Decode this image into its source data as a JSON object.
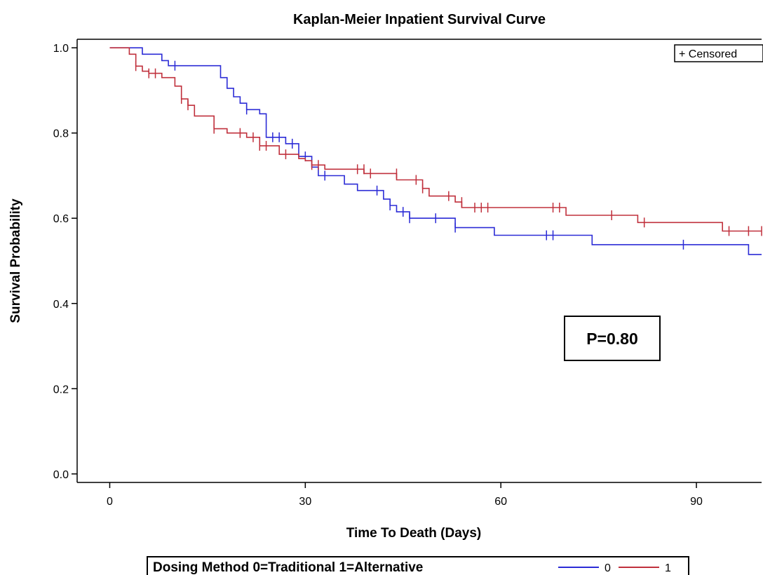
{
  "chart_data": {
    "type": "line",
    "subtype": "kaplan-meier-step",
    "title": "Kaplan-Meier Inpatient Survival Curve",
    "xlabel": "Time To Death (Days)",
    "ylabel": "Survival Probability",
    "xlim": [
      -5,
      100
    ],
    "ylim": [
      -0.02,
      1.02
    ],
    "x_ticks": [
      0,
      30,
      60,
      90
    ],
    "y_ticks": [
      "0.0",
      "0.2",
      "0.4",
      "0.6",
      "0.8",
      "1.0"
    ],
    "grid": false,
    "censor_legend": "+ Censored",
    "annotation": "P=0.80",
    "legend": {
      "title": "Dosing Method 0=Traditional 1=Alternative",
      "placement": "bottom"
    },
    "series": [
      {
        "name": "0",
        "color": "#2b2bd6",
        "steps": [
          [
            0,
            1.0
          ],
          [
            5,
            0.985
          ],
          [
            8,
            0.97
          ],
          [
            9,
            0.958
          ],
          [
            17,
            0.93
          ],
          [
            18,
            0.905
          ],
          [
            19,
            0.885
          ],
          [
            20,
            0.87
          ],
          [
            21,
            0.855
          ],
          [
            23,
            0.845
          ],
          [
            24,
            0.79
          ],
          [
            27,
            0.775
          ],
          [
            29,
            0.745
          ],
          [
            31,
            0.72
          ],
          [
            32,
            0.7
          ],
          [
            36,
            0.68
          ],
          [
            38,
            0.665
          ],
          [
            42,
            0.645
          ],
          [
            43,
            0.63
          ],
          [
            44,
            0.615
          ],
          [
            46,
            0.6
          ],
          [
            53,
            0.578
          ],
          [
            59,
            0.56
          ],
          [
            74,
            0.538
          ],
          [
            98,
            0.515
          ],
          [
            100,
            0.515
          ]
        ],
        "censored": [
          [
            10,
            0.958
          ],
          [
            21,
            0.855
          ],
          [
            25,
            0.79
          ],
          [
            26,
            0.79
          ],
          [
            28,
            0.775
          ],
          [
            30,
            0.745
          ],
          [
            33,
            0.7
          ],
          [
            41,
            0.665
          ],
          [
            43,
            0.63
          ],
          [
            45,
            0.615
          ],
          [
            46,
            0.6
          ],
          [
            50,
            0.6
          ],
          [
            53,
            0.578
          ],
          [
            67,
            0.56
          ],
          [
            68,
            0.56
          ],
          [
            88,
            0.538
          ]
        ]
      },
      {
        "name": "1",
        "color": "#c0303c",
        "steps": [
          [
            0,
            1.0
          ],
          [
            3,
            0.985
          ],
          [
            4,
            0.957
          ],
          [
            5,
            0.945
          ],
          [
            6,
            0.94
          ],
          [
            8,
            0.93
          ],
          [
            10,
            0.91
          ],
          [
            11,
            0.88
          ],
          [
            12,
            0.865
          ],
          [
            13,
            0.84
          ],
          [
            16,
            0.81
          ],
          [
            18,
            0.8
          ],
          [
            21,
            0.79
          ],
          [
            23,
            0.77
          ],
          [
            26,
            0.75
          ],
          [
            29,
            0.74
          ],
          [
            30,
            0.735
          ],
          [
            31,
            0.725
          ],
          [
            33,
            0.715
          ],
          [
            39,
            0.705
          ],
          [
            44,
            0.69
          ],
          [
            48,
            0.67
          ],
          [
            49,
            0.652
          ],
          [
            53,
            0.638
          ],
          [
            54,
            0.625
          ],
          [
            70,
            0.607
          ],
          [
            81,
            0.59
          ],
          [
            94,
            0.57
          ],
          [
            100,
            0.57
          ]
        ],
        "censored": [
          [
            4,
            0.957
          ],
          [
            6,
            0.94
          ],
          [
            7,
            0.94
          ],
          [
            11,
            0.88
          ],
          [
            12,
            0.865
          ],
          [
            16,
            0.81
          ],
          [
            20,
            0.8
          ],
          [
            22,
            0.79
          ],
          [
            23,
            0.77
          ],
          [
            24,
            0.77
          ],
          [
            27,
            0.75
          ],
          [
            31,
            0.725
          ],
          [
            32,
            0.725
          ],
          [
            38,
            0.715
          ],
          [
            39,
            0.715
          ],
          [
            40,
            0.705
          ],
          [
            44,
            0.705
          ],
          [
            47,
            0.69
          ],
          [
            48,
            0.67
          ],
          [
            52,
            0.652
          ],
          [
            54,
            0.638
          ],
          [
            56,
            0.625
          ],
          [
            57,
            0.625
          ],
          [
            58,
            0.625
          ],
          [
            68,
            0.625
          ],
          [
            69,
            0.625
          ],
          [
            77,
            0.607
          ],
          [
            82,
            0.59
          ],
          [
            95,
            0.57
          ],
          [
            98,
            0.57
          ],
          [
            100,
            0.57
          ]
        ]
      }
    ]
  }
}
